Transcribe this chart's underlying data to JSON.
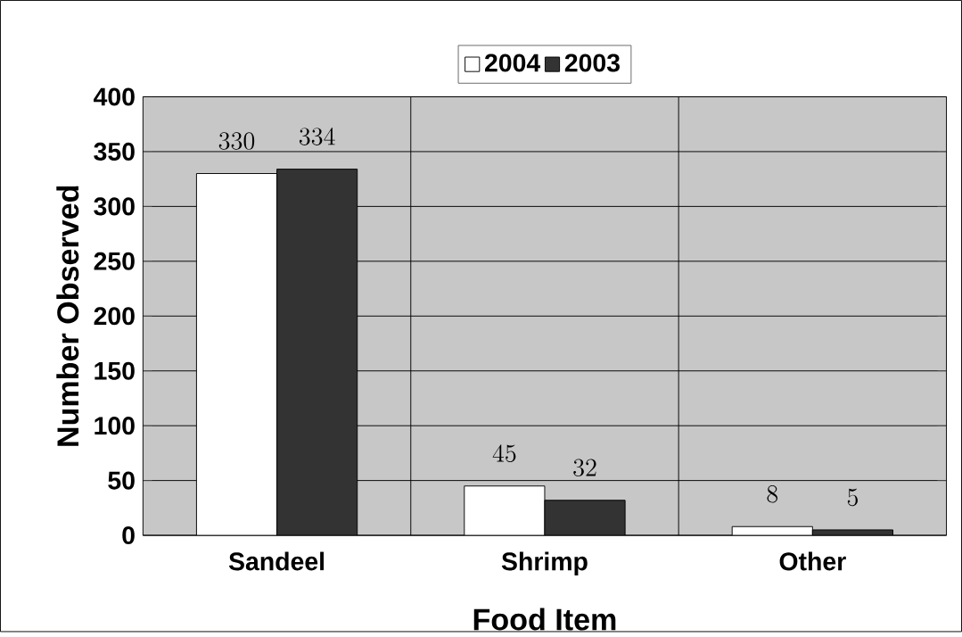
{
  "chart_data": {
    "type": "bar",
    "xlabel": "Food Item",
    "ylabel": "Number Observed",
    "categories": [
      "Sandeel",
      "Shrimp",
      "Other"
    ],
    "series": [
      {
        "name": "2004",
        "color": "#ffffff",
        "values": [
          330,
          45,
          8
        ]
      },
      {
        "name": "2003",
        "color": "#333333",
        "values": [
          334,
          32,
          5
        ]
      }
    ],
    "ylim": [
      0,
      400
    ],
    "yticks": [
      0,
      50,
      100,
      150,
      200,
      250,
      300,
      350,
      400
    ],
    "grid": true,
    "legend": "top",
    "data_labels": true
  }
}
